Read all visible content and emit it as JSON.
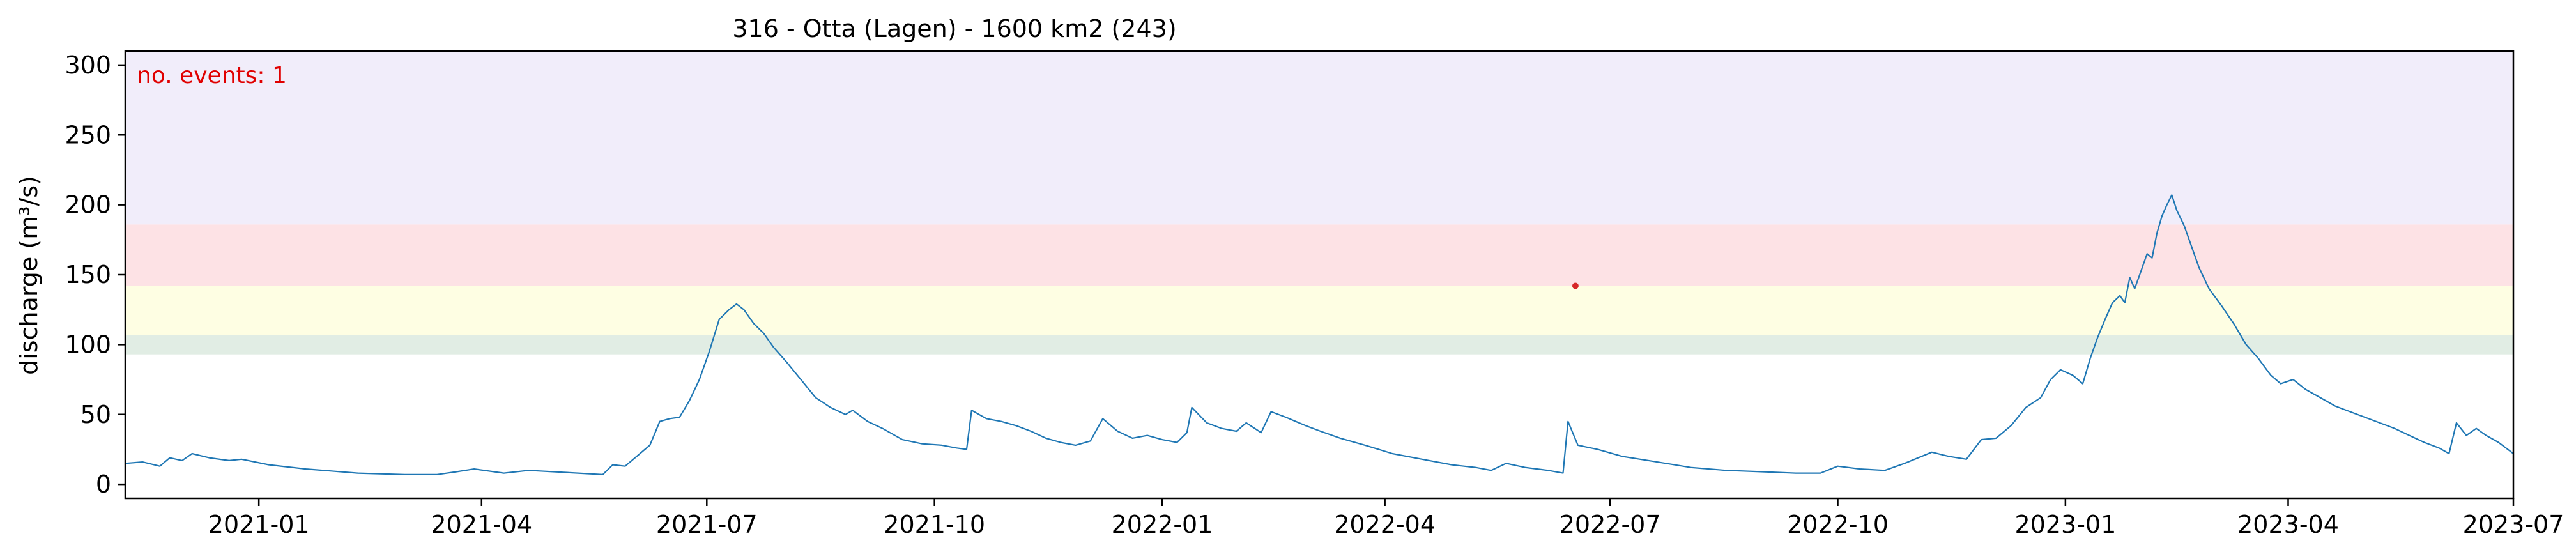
{
  "chart_data": {
    "type": "line",
    "title": "316 - Otta (Lagen) - 1600 km2 (243)",
    "xlabel": "",
    "ylabel": "discharge (m³/s)",
    "annotation": "no. events: 1",
    "xlim": [
      "2020-11-08",
      "2023-07-01"
    ],
    "ylim": [
      -10,
      310
    ],
    "x_ticks": [
      "2021-01",
      "2021-04",
      "2021-07",
      "2021-10",
      "2022-01",
      "2022-04",
      "2022-07",
      "2022-10",
      "2023-01",
      "2023-04",
      "2023-07"
    ],
    "y_ticks": [
      0,
      50,
      100,
      150,
      200,
      250,
      300
    ],
    "bands": [
      {
        "from": 93,
        "to": 107,
        "color": "#e1ede4"
      },
      {
        "from": 107,
        "to": 142,
        "color": "#fefee3"
      },
      {
        "from": 142,
        "to": 186,
        "color": "#fde2e5"
      },
      {
        "from": 186,
        "to": 310,
        "color": "#f1edfa"
      }
    ],
    "series": [
      {
        "color": "#1f77b4",
        "points": [
          [
            "2020-11-08",
            15
          ],
          [
            "2020-11-15",
            16
          ],
          [
            "2020-11-22",
            13
          ],
          [
            "2020-11-26",
            19
          ],
          [
            "2020-12-01",
            17
          ],
          [
            "2020-12-05",
            22
          ],
          [
            "2020-12-12",
            19
          ],
          [
            "2020-12-20",
            17
          ],
          [
            "2020-12-25",
            18
          ],
          [
            "2021-01-05",
            14
          ],
          [
            "2021-01-20",
            11
          ],
          [
            "2021-02-10",
            8
          ],
          [
            "2021-03-01",
            7
          ],
          [
            "2021-03-14",
            7
          ],
          [
            "2021-03-22",
            9
          ],
          [
            "2021-03-29",
            11
          ],
          [
            "2021-04-10",
            8
          ],
          [
            "2021-04-20",
            10
          ],
          [
            "2021-05-10",
            8
          ],
          [
            "2021-05-20",
            7
          ],
          [
            "2021-05-24",
            14
          ],
          [
            "2021-05-29",
            13
          ],
          [
            "2021-06-04",
            22
          ],
          [
            "2021-06-08",
            28
          ],
          [
            "2021-06-12",
            45
          ],
          [
            "2021-06-16",
            47
          ],
          [
            "2021-06-20",
            48
          ],
          [
            "2021-06-24",
            60
          ],
          [
            "2021-06-28",
            75
          ],
          [
            "2021-07-02",
            95
          ],
          [
            "2021-07-06",
            118
          ],
          [
            "2021-07-10",
            125
          ],
          [
            "2021-07-13",
            129
          ],
          [
            "2021-07-16",
            125
          ],
          [
            "2021-07-20",
            115
          ],
          [
            "2021-07-24",
            108
          ],
          [
            "2021-07-28",
            98
          ],
          [
            "2021-08-02",
            88
          ],
          [
            "2021-08-08",
            75
          ],
          [
            "2021-08-14",
            62
          ],
          [
            "2021-08-20",
            55
          ],
          [
            "2021-08-26",
            50
          ],
          [
            "2021-08-29",
            53
          ],
          [
            "2021-09-04",
            45
          ],
          [
            "2021-09-10",
            40
          ],
          [
            "2021-09-18",
            32
          ],
          [
            "2021-09-26",
            29
          ],
          [
            "2021-10-04",
            28
          ],
          [
            "2021-10-10",
            26
          ],
          [
            "2021-10-14",
            25
          ],
          [
            "2021-10-16",
            53
          ],
          [
            "2021-10-22",
            47
          ],
          [
            "2021-10-28",
            45
          ],
          [
            "2021-11-03",
            42
          ],
          [
            "2021-11-09",
            38
          ],
          [
            "2021-11-15",
            33
          ],
          [
            "2021-11-21",
            30
          ],
          [
            "2021-11-27",
            28
          ],
          [
            "2021-12-03",
            31
          ],
          [
            "2021-12-08",
            47
          ],
          [
            "2021-12-14",
            38
          ],
          [
            "2021-12-20",
            33
          ],
          [
            "2021-12-26",
            35
          ],
          [
            "2022-01-01",
            32
          ],
          [
            "2022-01-07",
            30
          ],
          [
            "2022-01-11",
            37
          ],
          [
            "2022-01-13",
            55
          ],
          [
            "2022-01-19",
            44
          ],
          [
            "2022-01-25",
            40
          ],
          [
            "2022-01-31",
            38
          ],
          [
            "2022-02-04",
            44
          ],
          [
            "2022-02-10",
            37
          ],
          [
            "2022-02-14",
            52
          ],
          [
            "2022-02-20",
            48
          ],
          [
            "2022-02-28",
            42
          ],
          [
            "2022-03-06",
            38
          ],
          [
            "2022-03-14",
            33
          ],
          [
            "2022-03-24",
            28
          ],
          [
            "2022-04-04",
            22
          ],
          [
            "2022-04-16",
            18
          ],
          [
            "2022-04-28",
            14
          ],
          [
            "2022-05-08",
            12
          ],
          [
            "2022-05-14",
            10
          ],
          [
            "2022-05-20",
            15
          ],
          [
            "2022-05-28",
            12
          ],
          [
            "2022-06-06",
            10
          ],
          [
            "2022-06-12",
            8
          ],
          [
            "2022-06-14",
            45
          ],
          [
            "2022-06-18",
            28
          ],
          [
            "2022-06-26",
            25
          ],
          [
            "2022-07-06",
            20
          ],
          [
            "2022-07-20",
            16
          ],
          [
            "2022-08-03",
            12
          ],
          [
            "2022-08-17",
            10
          ],
          [
            "2022-08-31",
            9
          ],
          [
            "2022-09-14",
            8
          ],
          [
            "2022-09-24",
            8
          ],
          [
            "2022-10-01",
            13
          ],
          [
            "2022-10-10",
            11
          ],
          [
            "2022-10-20",
            10
          ],
          [
            "2022-10-28",
            15
          ],
          [
            "2022-11-08",
            23
          ],
          [
            "2022-11-15",
            20
          ],
          [
            "2022-11-22",
            18
          ],
          [
            "2022-11-28",
            32
          ],
          [
            "2022-12-04",
            33
          ],
          [
            "2022-12-10",
            42
          ],
          [
            "2022-12-16",
            55
          ],
          [
            "2022-12-22",
            62
          ],
          [
            "2022-12-26",
            75
          ],
          [
            "2022-12-30",
            82
          ],
          [
            "2023-01-04",
            78
          ],
          [
            "2023-01-08",
            72
          ],
          [
            "2023-01-11",
            90
          ],
          [
            "2023-01-14",
            105
          ],
          [
            "2023-01-17",
            118
          ],
          [
            "2023-01-20",
            130
          ],
          [
            "2023-01-23",
            135
          ],
          [
            "2023-01-25",
            130
          ],
          [
            "2023-01-27",
            148
          ],
          [
            "2023-01-29",
            140
          ],
          [
            "2023-02-01",
            155
          ],
          [
            "2023-02-03",
            165
          ],
          [
            "2023-02-05",
            162
          ],
          [
            "2023-02-07",
            180
          ],
          [
            "2023-02-09",
            192
          ],
          [
            "2023-02-11",
            200
          ],
          [
            "2023-02-13",
            207
          ],
          [
            "2023-02-15",
            196
          ],
          [
            "2023-02-18",
            185
          ],
          [
            "2023-02-21",
            170
          ],
          [
            "2023-02-24",
            155
          ],
          [
            "2023-02-28",
            140
          ],
          [
            "2023-03-05",
            128
          ],
          [
            "2023-03-10",
            115
          ],
          [
            "2023-03-15",
            100
          ],
          [
            "2023-03-20",
            90
          ],
          [
            "2023-03-25",
            78
          ],
          [
            "2023-03-29",
            72
          ],
          [
            "2023-04-03",
            75
          ],
          [
            "2023-04-08",
            68
          ],
          [
            "2023-04-14",
            62
          ],
          [
            "2023-04-20",
            56
          ],
          [
            "2023-04-26",
            52
          ],
          [
            "2023-05-02",
            48
          ],
          [
            "2023-05-08",
            44
          ],
          [
            "2023-05-14",
            40
          ],
          [
            "2023-05-20",
            35
          ],
          [
            "2023-05-26",
            30
          ],
          [
            "2023-06-01",
            26
          ],
          [
            "2023-06-05",
            22
          ],
          [
            "2023-06-08",
            44
          ],
          [
            "2023-06-12",
            35
          ],
          [
            "2023-06-16",
            40
          ],
          [
            "2023-06-20",
            35
          ],
          [
            "2023-06-25",
            30
          ],
          [
            "2023-07-01",
            22
          ]
        ]
      }
    ],
    "event_marker": {
      "date": "2022-06-17",
      "value": 142,
      "color": "#d62728"
    }
  }
}
